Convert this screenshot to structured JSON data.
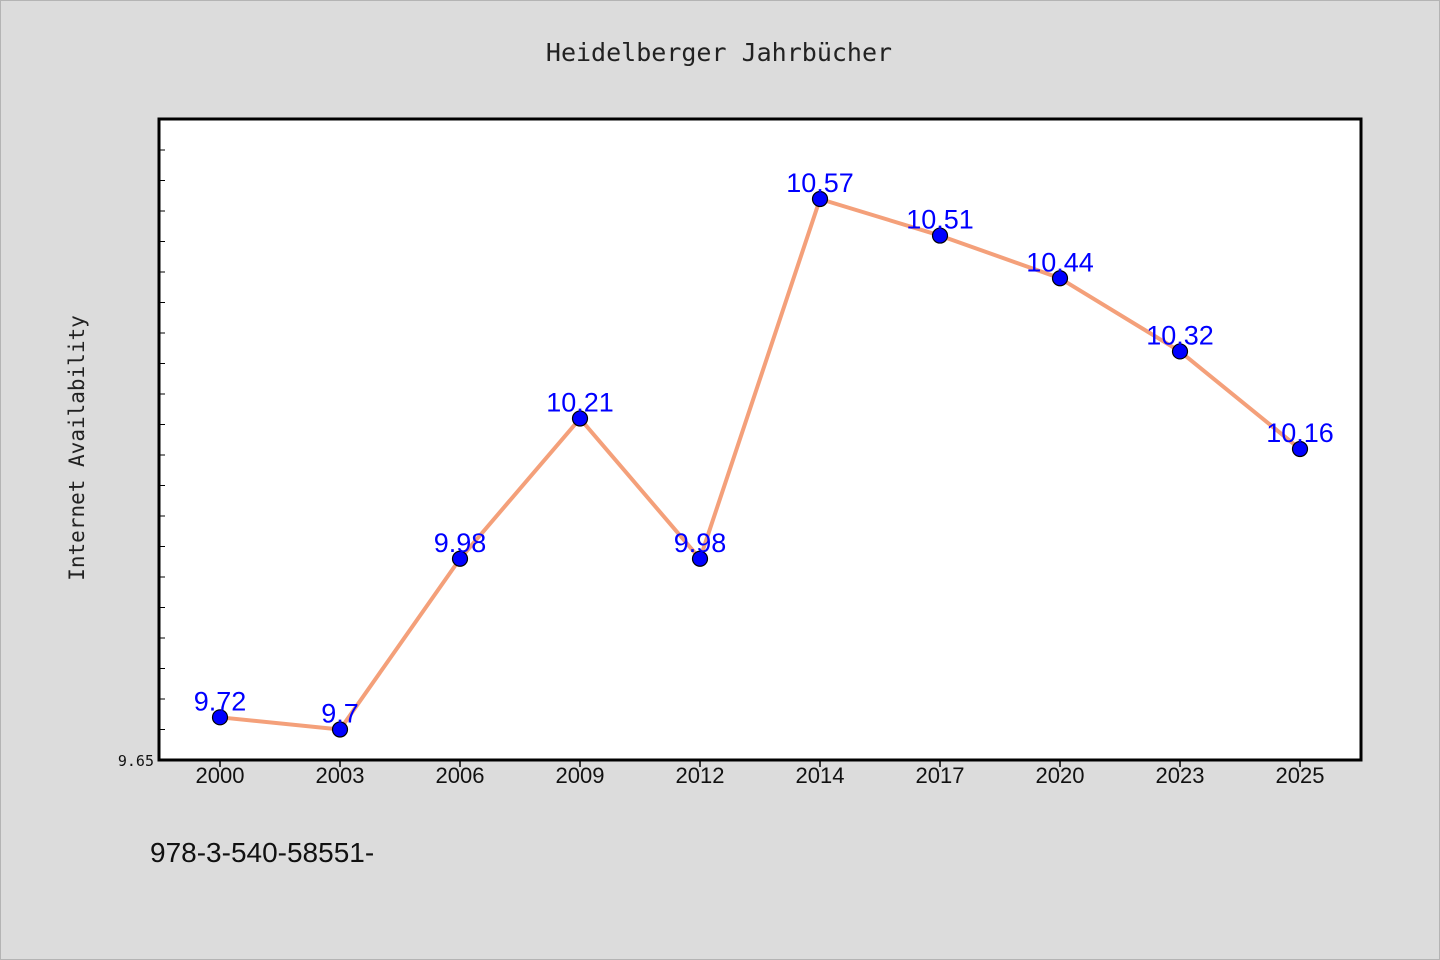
{
  "chart_data": {
    "type": "line",
    "title": "Heidelberger Jahrbücher",
    "xlabel": "",
    "ylabel": "Internet Availability",
    "categories": [
      "2000",
      "2003",
      "2006",
      "2009",
      "2012",
      "2014",
      "2017",
      "2020",
      "2023",
      "2025"
    ],
    "series": [
      {
        "values": [
          9.72,
          9.7,
          9.98,
          10.21,
          9.98,
          10.57,
          10.51,
          10.44,
          10.32,
          10.16
        ],
        "labels": [
          "9.72",
          "9.7",
          "9.98",
          "10.21",
          "9.98",
          "10.57",
          "10.51",
          "10.44",
          "10.32",
          "10.16"
        ],
        "line_color": "#f4a07a",
        "marker_color": "#0000ff"
      }
    ],
    "ylim": [
      9.65,
      10.7
    ],
    "yticks_labeled": [
      "9.65"
    ],
    "grid": false,
    "legend": "none"
  },
  "footer": {
    "text": "978-3-540-58551-"
  },
  "colors": {
    "background": "#dcdcdc",
    "plot_area": "#ffffff",
    "line": "#f4a07a",
    "marker": "#0000ff",
    "data_label": "#0000ff"
  }
}
